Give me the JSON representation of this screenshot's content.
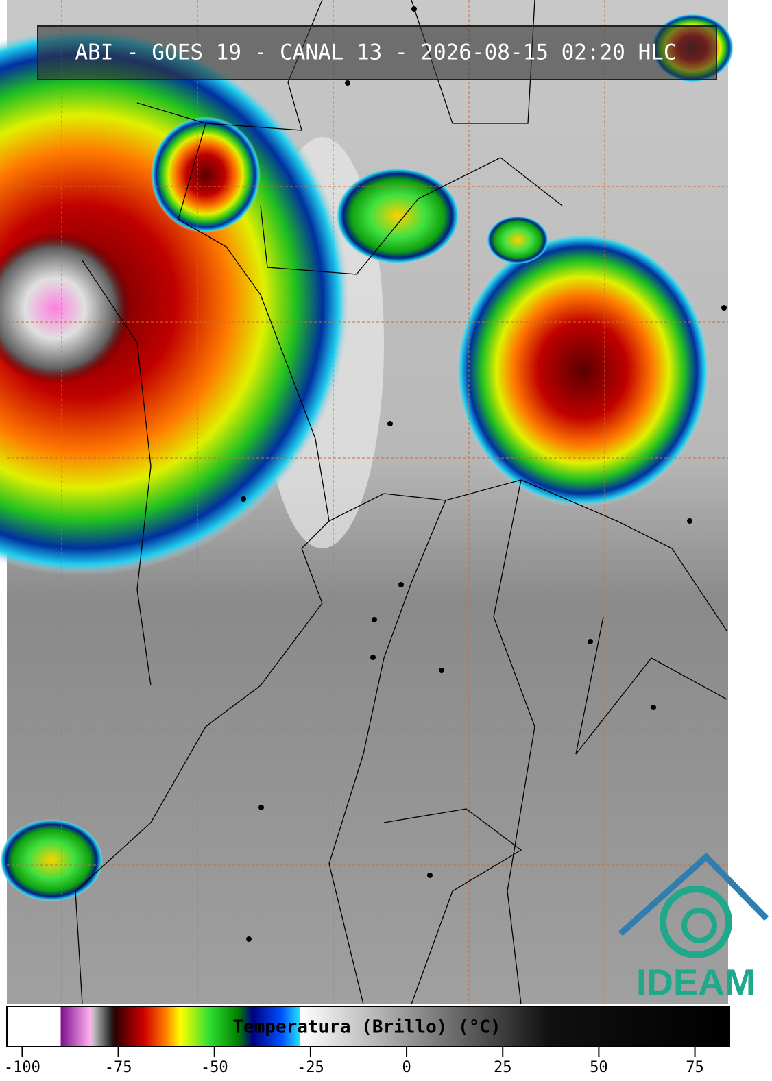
{
  "header": {
    "title": "ABI - GOES 19 - CANAL 13 - 2026-08-15 02:20 HLC"
  },
  "colorbar": {
    "label": "Temperatura (Brillo) (°C)",
    "lim": [
      -104,
      84
    ],
    "ticks": [
      -100,
      -75,
      -50,
      -25,
      0,
      25,
      50,
      75
    ]
  },
  "logo": {
    "text": "IDEAM"
  }
}
